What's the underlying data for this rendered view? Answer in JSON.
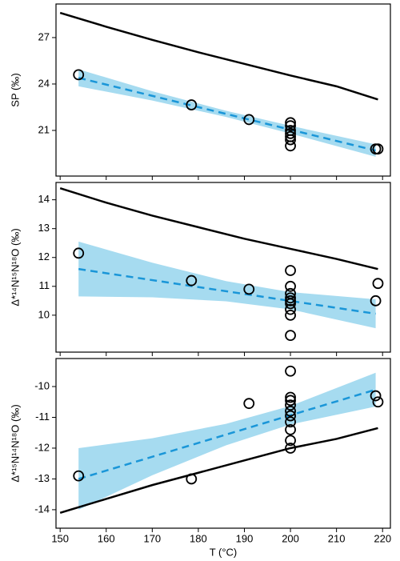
{
  "chart_data": [
    {
      "type": "scatter",
      "ylabel": "SP (‰)",
      "xlim": [
        149.1,
        221.7
      ],
      "xticks": [
        150,
        160,
        170,
        180,
        190,
        200,
        210,
        220
      ],
      "ylim": [
        18.05,
        29.17
      ],
      "yticks": [
        21,
        24,
        27
      ],
      "model_line": {
        "color": "#000000",
        "x": [
          150,
          160,
          170,
          180,
          190,
          200,
          210,
          219
        ],
        "y": [
          28.6,
          27.7,
          26.85,
          26.05,
          25.3,
          24.55,
          23.85,
          23.0
        ]
      },
      "band": {
        "color": "#a6dbf0",
        "x": [
          154,
          170,
          186,
          200,
          218.5
        ],
        "upper": [
          24.95,
          23.53,
          22.27,
          21.3,
          20.1
        ],
        "lower": [
          23.85,
          22.93,
          21.87,
          20.8,
          19.3
        ]
      },
      "fit": {
        "color": "#1a96d8",
        "x": [
          154,
          218.5
        ],
        "y": [
          24.4,
          19.7
        ]
      },
      "points": {
        "color": "#000000",
        "x": [
          154,
          178.5,
          191,
          200,
          200,
          200,
          200,
          200,
          200,
          200,
          218.5,
          219
        ],
        "y": [
          24.6,
          22.65,
          21.7,
          21.5,
          21.3,
          21.0,
          20.8,
          20.6,
          20.4,
          20.0,
          19.8,
          19.8
        ]
      }
    },
    {
      "type": "scatter",
      "ylabel": "Δ*¹⁴N¹⁵N¹⁸O (‰)",
      "xlim": [
        149.1,
        221.7
      ],
      "xticks": [
        150,
        160,
        170,
        180,
        190,
        200,
        210,
        220
      ],
      "ylim": [
        8.72,
        14.6
      ],
      "yticks": [
        10,
        11,
        12,
        13,
        14
      ],
      "model_line": {
        "color": "#000000",
        "x": [
          150,
          160,
          170,
          180,
          190,
          200,
          210,
          219
        ],
        "y": [
          14.4,
          13.9,
          13.45,
          13.05,
          12.65,
          12.3,
          11.95,
          11.6
        ]
      },
      "band": {
        "color": "#a6dbf0",
        "x": [
          154,
          170,
          186,
          200,
          218.5
        ],
        "upper": [
          12.55,
          11.82,
          11.18,
          10.8,
          10.55
        ],
        "lower": [
          10.65,
          10.62,
          10.48,
          10.2,
          9.55
        ]
      },
      "fit": {
        "color": "#1a96d8",
        "x": [
          154,
          218.5
        ],
        "y": [
          11.6,
          10.05
        ]
      },
      "points": {
        "color": "#000000",
        "x": [
          154,
          178.5,
          191,
          200,
          200,
          200,
          200,
          200,
          200,
          200,
          200,
          200,
          218.5,
          219
        ],
        "y": [
          12.15,
          11.2,
          10.9,
          11.55,
          11.0,
          10.75,
          10.6,
          10.5,
          10.4,
          10.2,
          10.0,
          9.3,
          10.5,
          11.1
        ]
      }
    },
    {
      "type": "scatter",
      "ylabel": "Δ*¹⁵N¹⁴N¹⁸O (‰)",
      "xlabel": "T (°C)",
      "xlim": [
        149.1,
        221.7
      ],
      "xticks": [
        150,
        160,
        170,
        180,
        190,
        200,
        210,
        220
      ],
      "ylim": [
        -14.6,
        -9.09
      ],
      "yticks": [
        -14,
        -13,
        -12,
        -11,
        -10
      ],
      "model_line": {
        "color": "#000000",
        "x": [
          150,
          160,
          170,
          180,
          190,
          200,
          210,
          219
        ],
        "y": [
          -14.1,
          -13.65,
          -13.2,
          -12.8,
          -12.4,
          -12.0,
          -11.7,
          -11.35
        ]
      },
      "band": {
        "color": "#a6dbf0",
        "x": [
          154,
          170,
          186,
          200,
          218.5
        ],
        "upper": [
          -12.0,
          -11.68,
          -11.21,
          -10.63,
          -9.55
        ],
        "lower": [
          -14.0,
          -12.88,
          -11.91,
          -11.23,
          -10.65
        ]
      },
      "fit": {
        "color": "#1a96d8",
        "x": [
          154,
          218.5
        ],
        "y": [
          -13.0,
          -10.1
        ]
      },
      "points": {
        "color": "#000000",
        "x": [
          154,
          178.5,
          191,
          200,
          200,
          200,
          200,
          200,
          200,
          200,
          200,
          200,
          200,
          218.5,
          219
        ],
        "y": [
          -12.9,
          -13.0,
          -10.55,
          -9.5,
          -10.35,
          -10.45,
          -10.6,
          -10.8,
          -10.95,
          -11.15,
          -11.4,
          -11.75,
          -12.0,
          -10.3,
          -10.5
        ]
      }
    }
  ]
}
